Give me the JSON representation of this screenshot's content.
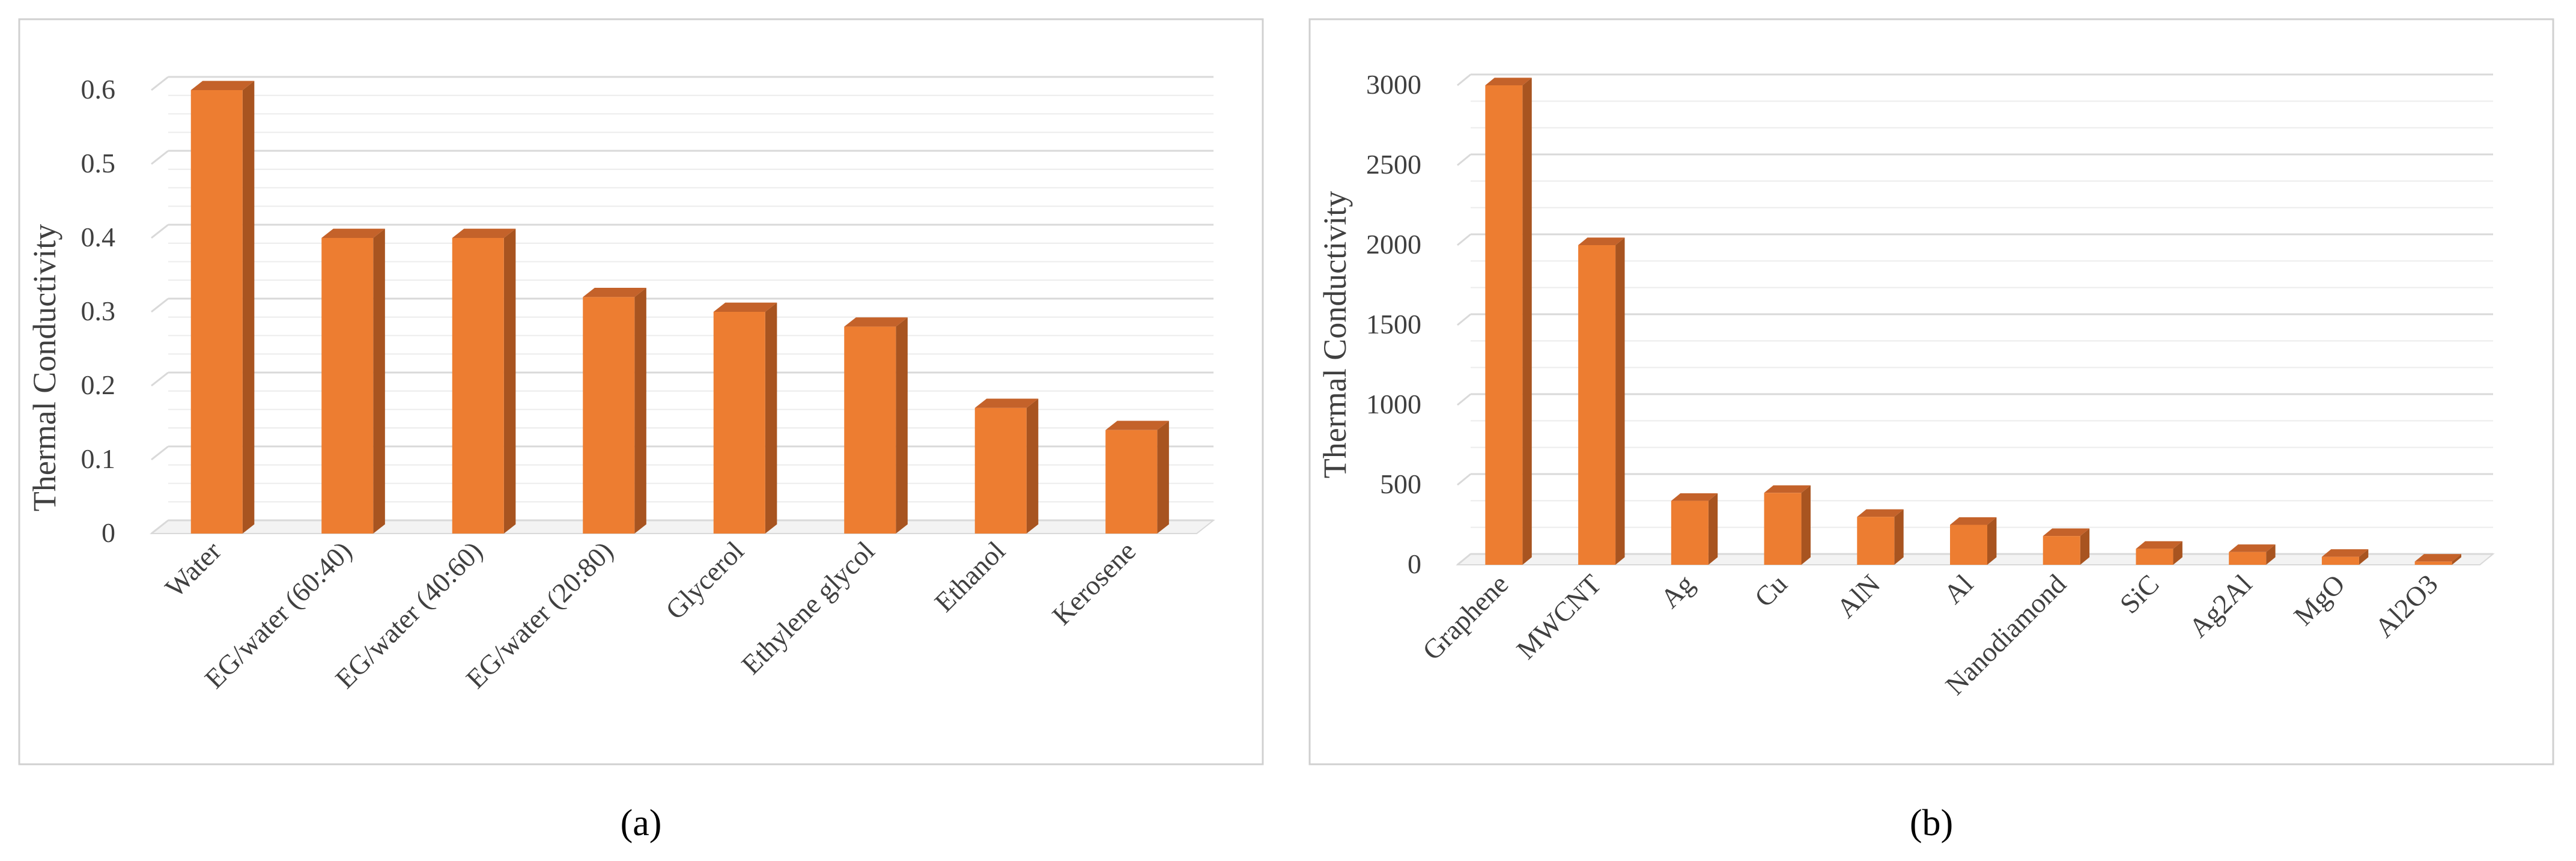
{
  "colors": {
    "bar_front": "#ED7D31",
    "bar_side": "#A85420",
    "bar_top": "#C4622A"
  },
  "chart_data": [
    {
      "type": "bar",
      "caption": "(a)",
      "ylabel": "Thermal Conductivity",
      "xlabel": "",
      "ylim": [
        0,
        0.6
      ],
      "yticks": [
        "0",
        "0.1",
        "0.2",
        "0.3",
        "0.4",
        "0.5",
        "0.6"
      ],
      "categories": [
        "Water",
        "EG/water (60:40)",
        "EG/water (40:60)",
        "EG/water (20:80)",
        "Glycerol",
        "Ethylene glycol",
        "Ethanol",
        "Kerosene"
      ],
      "values": [
        0.6,
        0.4,
        0.4,
        0.32,
        0.3,
        0.28,
        0.17,
        0.14
      ],
      "grid": true,
      "legend": "none"
    },
    {
      "type": "bar",
      "caption": "(b)",
      "ylabel": "Thermal Conductivity",
      "xlabel": "",
      "ylim": [
        0,
        3000
      ],
      "yticks": [
        "0",
        "500",
        "1000",
        "1500",
        "2000",
        "2500",
        "3000"
      ],
      "categories": [
        "Graphene",
        "MWCNT",
        "Ag",
        "Cu",
        "AlN",
        "Al",
        "Nanodiamond",
        "SiC",
        "Ag2Al",
        "MgO",
        "Al2O3"
      ],
      "values": [
        3000,
        2000,
        400,
        450,
        300,
        250,
        180,
        100,
        80,
        50,
        20
      ],
      "grid": true,
      "legend": "none"
    }
  ]
}
